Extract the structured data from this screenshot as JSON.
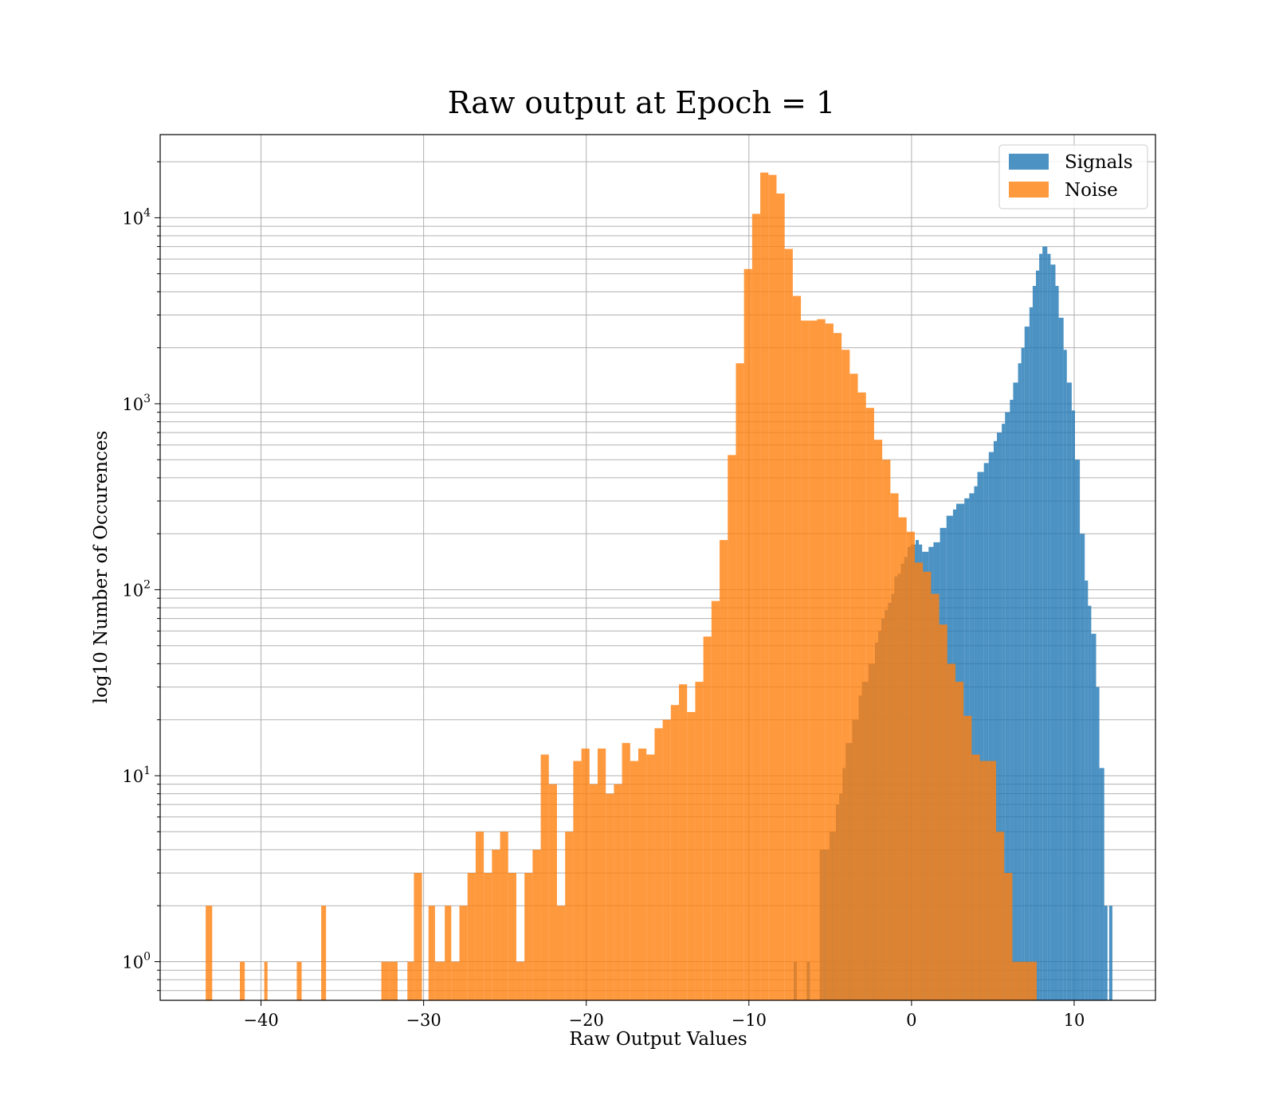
{
  "chart_data": {
    "type": "histogram",
    "title": "Raw output at Epoch = 1",
    "xlabel": "Raw Output Values",
    "ylabel": "log10 Number of Occurences",
    "xlim": [
      -46.2,
      15
    ],
    "ylim": [
      0.62,
      28000
    ],
    "yscale": "log",
    "grid": true,
    "grid_minor_y": true,
    "legend_position": "top-right",
    "x_ticks": [
      {
        "value": -40,
        "label": "−40"
      },
      {
        "value": -30,
        "label": "−30"
      },
      {
        "value": -20,
        "label": "−20"
      },
      {
        "value": -10,
        "label": "−10"
      },
      {
        "value": 0,
        "label": "0"
      },
      {
        "value": 10,
        "label": "10"
      }
    ],
    "y_ticks": [
      {
        "value": 1,
        "base": "10",
        "exp": "0"
      },
      {
        "value": 10,
        "base": "10",
        "exp": "1"
      },
      {
        "value": 100,
        "base": "10",
        "exp": "2"
      },
      {
        "value": 1000,
        "base": "10",
        "exp": "3"
      },
      {
        "value": 10000,
        "base": "10",
        "exp": "4"
      }
    ],
    "series": [
      {
        "name": "Signals",
        "color": "#1f77b4",
        "opacity": 0.8,
        "bins": [
          [
            -7.25,
            -7.05,
            1
          ],
          [
            -6.45,
            -6.25,
            1
          ],
          [
            -5.65,
            -5.05,
            4
          ],
          [
            -5.05,
            -4.65,
            5
          ],
          [
            -4.65,
            -4.45,
            7
          ],
          [
            -4.45,
            -4.25,
            8
          ],
          [
            -4.25,
            -4.05,
            11
          ],
          [
            -4.05,
            -3.65,
            15
          ],
          [
            -3.65,
            -3.25,
            20
          ],
          [
            -3.25,
            -3.05,
            27
          ],
          [
            -3.05,
            -2.65,
            32
          ],
          [
            -2.65,
            -2.25,
            40
          ],
          [
            -2.25,
            -2.05,
            52
          ],
          [
            -2.05,
            -1.85,
            60
          ],
          [
            -1.85,
            -1.65,
            70
          ],
          [
            -1.65,
            -1.45,
            78
          ],
          [
            -1.45,
            -1.25,
            85
          ],
          [
            -1.25,
            -1.05,
            95
          ],
          [
            -1.05,
            -0.85,
            118
          ],
          [
            -0.85,
            -0.65,
            122
          ],
          [
            -0.65,
            -0.45,
            138
          ],
          [
            -0.45,
            -0.25,
            150
          ],
          [
            -0.25,
            -0.05,
            170
          ],
          [
            -0.05,
            0.25,
            175
          ],
          [
            0.25,
            0.45,
            185
          ],
          [
            0.45,
            0.65,
            175
          ],
          [
            0.65,
            1.05,
            160
          ],
          [
            1.05,
            1.35,
            170
          ],
          [
            1.35,
            1.75,
            180
          ],
          [
            1.75,
            2.15,
            215
          ],
          [
            2.15,
            2.55,
            250
          ],
          [
            2.55,
            2.75,
            270
          ],
          [
            2.75,
            3.25,
            290
          ],
          [
            3.25,
            3.55,
            310
          ],
          [
            3.55,
            3.85,
            330
          ],
          [
            3.85,
            4.05,
            360
          ],
          [
            4.05,
            4.45,
            430
          ],
          [
            4.45,
            4.75,
            480
          ],
          [
            4.75,
            5.05,
            550
          ],
          [
            5.05,
            5.25,
            630
          ],
          [
            5.25,
            5.55,
            700
          ],
          [
            5.55,
            5.75,
            780
          ],
          [
            5.75,
            6.05,
            900
          ],
          [
            6.05,
            6.25,
            1050
          ],
          [
            6.25,
            6.55,
            1300
          ],
          [
            6.55,
            6.75,
            1650
          ],
          [
            6.75,
            6.95,
            2000
          ],
          [
            6.95,
            7.25,
            2600
          ],
          [
            7.25,
            7.45,
            3300
          ],
          [
            7.45,
            7.65,
            4300
          ],
          [
            7.65,
            7.85,
            5200
          ],
          [
            7.85,
            8.05,
            6400
          ],
          [
            8.05,
            8.35,
            7000
          ],
          [
            8.35,
            8.55,
            6400
          ],
          [
            8.55,
            8.85,
            5600
          ],
          [
            8.85,
            9.05,
            4300
          ],
          [
            9.05,
            9.35,
            2900
          ],
          [
            9.35,
            9.55,
            1950
          ],
          [
            9.55,
            9.85,
            1300
          ],
          [
            9.85,
            10.05,
            920
          ],
          [
            10.05,
            10.35,
            500
          ],
          [
            10.35,
            10.65,
            200
          ],
          [
            10.65,
            10.85,
            112
          ],
          [
            10.85,
            11.05,
            82
          ],
          [
            11.05,
            11.35,
            58
          ],
          [
            11.35,
            11.55,
            30
          ],
          [
            11.55,
            11.85,
            11
          ],
          [
            11.85,
            12.05,
            2
          ],
          [
            12.05,
            12.15,
            0.0001
          ],
          [
            12.15,
            12.35,
            2
          ]
        ]
      },
      {
        "name": "Noise",
        "color": "#ff7f0e",
        "opacity": 0.8,
        "bins": [
          [
            -43.4,
            -43.0,
            2
          ],
          [
            -41.3,
            -41.0,
            1
          ],
          [
            -39.8,
            -39.6,
            1
          ],
          [
            -37.8,
            -37.5,
            1
          ],
          [
            -36.3,
            -36.0,
            2
          ],
          [
            -32.6,
            -32.1,
            1
          ],
          [
            -32.1,
            -31.6,
            1
          ],
          [
            -31.0,
            -30.6,
            1
          ],
          [
            -30.6,
            -30.1,
            3
          ],
          [
            -29.7,
            -29.3,
            2
          ],
          [
            -29.3,
            -28.7,
            1
          ],
          [
            -28.7,
            -28.3,
            2
          ],
          [
            -28.3,
            -27.8,
            1
          ],
          [
            -27.8,
            -27.3,
            2
          ],
          [
            -27.3,
            -26.8,
            3
          ],
          [
            -26.8,
            -26.3,
            5
          ],
          [
            -26.3,
            -25.8,
            3
          ],
          [
            -25.8,
            -25.3,
            4
          ],
          [
            -25.3,
            -24.8,
            5
          ],
          [
            -24.8,
            -24.3,
            3
          ],
          [
            -24.3,
            -23.8,
            1
          ],
          [
            -23.8,
            -23.3,
            3
          ],
          [
            -23.3,
            -22.8,
            4
          ],
          [
            -22.8,
            -22.3,
            13
          ],
          [
            -22.3,
            -21.8,
            9
          ],
          [
            -21.8,
            -21.3,
            2
          ],
          [
            -21.3,
            -20.8,
            5
          ],
          [
            -20.8,
            -20.3,
            12
          ],
          [
            -20.3,
            -19.8,
            14
          ],
          [
            -19.8,
            -19.3,
            9
          ],
          [
            -19.3,
            -18.8,
            14
          ],
          [
            -18.8,
            -18.3,
            8
          ],
          [
            -18.3,
            -17.8,
            9
          ],
          [
            -17.8,
            -17.3,
            15
          ],
          [
            -17.3,
            -16.8,
            12
          ],
          [
            -16.8,
            -16.3,
            14
          ],
          [
            -16.3,
            -15.8,
            13
          ],
          [
            -15.8,
            -15.3,
            18
          ],
          [
            -15.3,
            -14.8,
            20
          ],
          [
            -14.8,
            -14.3,
            24
          ],
          [
            -14.3,
            -13.8,
            31
          ],
          [
            -13.8,
            -13.3,
            22
          ],
          [
            -13.3,
            -12.8,
            32
          ],
          [
            -12.8,
            -12.3,
            56
          ],
          [
            -12.3,
            -11.8,
            87
          ],
          [
            -11.8,
            -11.3,
            185
          ],
          [
            -11.3,
            -10.8,
            530
          ],
          [
            -10.8,
            -10.3,
            1650
          ],
          [
            -10.3,
            -9.8,
            5300
          ],
          [
            -9.8,
            -9.3,
            10500
          ],
          [
            -9.3,
            -8.8,
            17500
          ],
          [
            -8.8,
            -8.3,
            17000
          ],
          [
            -8.3,
            -7.8,
            13500
          ],
          [
            -7.8,
            -7.3,
            6800
          ],
          [
            -7.3,
            -6.8,
            3800
          ],
          [
            -6.8,
            -6.3,
            2800
          ],
          [
            -6.3,
            -5.8,
            2800
          ],
          [
            -5.8,
            -5.3,
            2850
          ],
          [
            -5.3,
            -4.8,
            2700
          ],
          [
            -4.8,
            -4.3,
            2400
          ],
          [
            -4.3,
            -3.8,
            1950
          ],
          [
            -3.8,
            -3.3,
            1450
          ],
          [
            -3.3,
            -2.8,
            1150
          ],
          [
            -2.8,
            -2.3,
            950
          ],
          [
            -2.3,
            -1.8,
            640
          ],
          [
            -1.8,
            -1.3,
            500
          ],
          [
            -1.3,
            -0.8,
            330
          ],
          [
            -0.8,
            -0.3,
            245
          ],
          [
            -0.3,
            0.2,
            205
          ],
          [
            0.2,
            0.7,
            140
          ],
          [
            0.7,
            1.2,
            125
          ],
          [
            1.2,
            1.7,
            95
          ],
          [
            1.7,
            2.2,
            65
          ],
          [
            2.2,
            2.7,
            40
          ],
          [
            2.7,
            3.2,
            32
          ],
          [
            3.2,
            3.7,
            21
          ],
          [
            3.7,
            4.2,
            13
          ],
          [
            4.2,
            4.7,
            12
          ],
          [
            4.7,
            5.2,
            12
          ],
          [
            5.2,
            5.7,
            5
          ],
          [
            5.7,
            6.2,
            3
          ],
          [
            6.2,
            6.7,
            1
          ],
          [
            6.7,
            7.2,
            1
          ],
          [
            7.2,
            7.7,
            1
          ]
        ]
      }
    ]
  }
}
